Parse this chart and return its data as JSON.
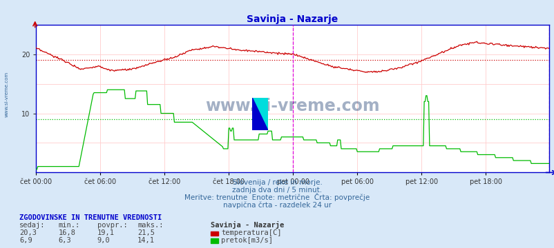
{
  "title": "Savinja - Nazarje",
  "title_color": "#0000cc",
  "bg_color": "#d8e8f8",
  "plot_bg_color": "#ffffff",
  "border_color": "#0000cc",
  "xlabel_ticks": [
    "čet 00:00",
    "čet 06:00",
    "čet 12:00",
    "čet 18:00",
    "pet 00:00",
    "pet 06:00",
    "pet 12:00",
    "pet 18:00"
  ],
  "n_points": 576,
  "ylim": [
    0,
    25
  ],
  "temp_avg": 19.1,
  "flow_avg": 9.0,
  "temp_color": "#cc0000",
  "flow_color": "#00bb00",
  "vline_color": "#dd00dd",
  "grid_h_color": "#ffcccc",
  "grid_v_color": "#ffcccc",
  "watermark": "www.si-vreme.com",
  "watermark_color": "#1a3a6e",
  "subtitle1": "Slovenija / reke in morje.",
  "subtitle2": "zadnja dva dni / 5 minut.",
  "subtitle3": "Meritve: trenutne  Enote: metrične  Črta: povprečje",
  "subtitle4": "navpična črta - razdelek 24 ur",
  "table_header": "ZGODOVINSKE IN TRENUTNE VREDNOSTI",
  "col_headers": [
    "sedaj:",
    "min.:",
    "povpr.:",
    "maks.:"
  ],
  "row1": [
    "20,3",
    "16,8",
    "19,1",
    "21,5"
  ],
  "row2": [
    "6,9",
    "6,3",
    "9,0",
    "14,1"
  ],
  "legend_title": "Savinja - Nazarje",
  "legend1": "temperatura[C]",
  "legend2": "pretok[m3/s]",
  "left_label": "www.si-vreme.com"
}
